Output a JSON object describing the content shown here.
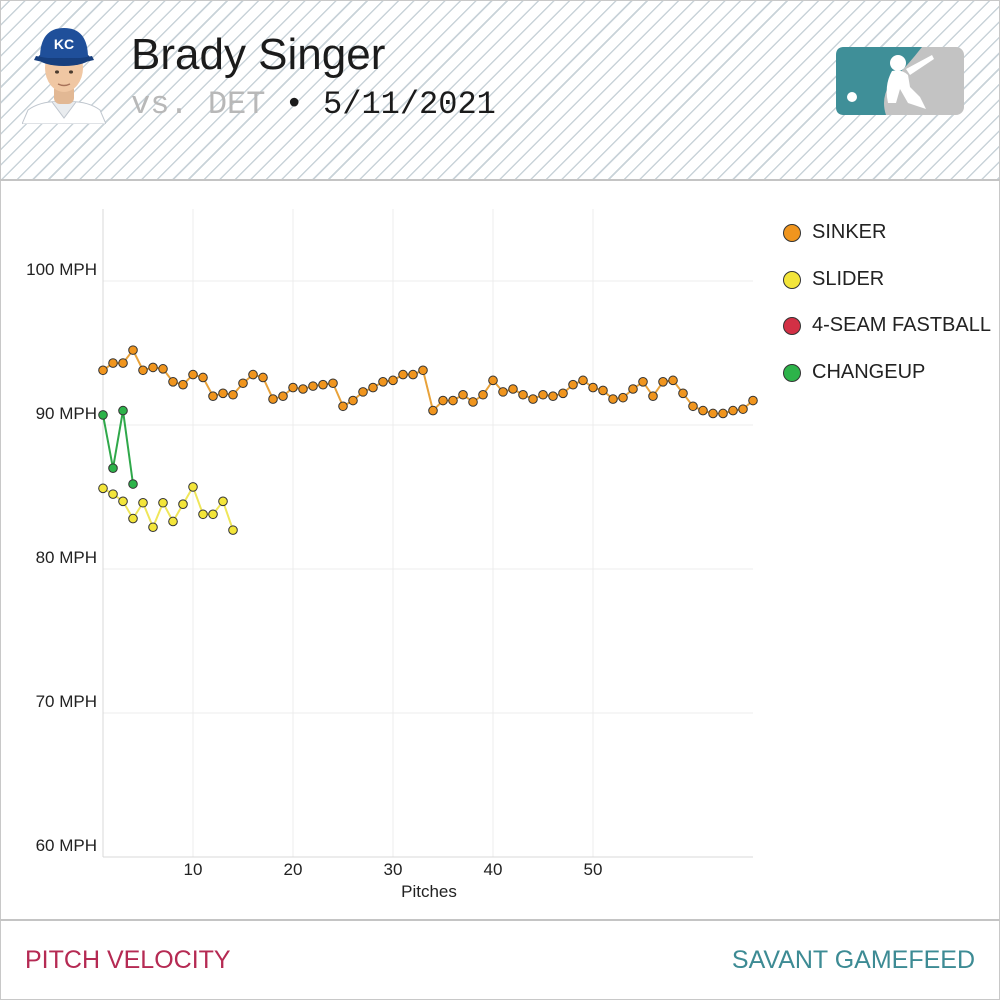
{
  "header": {
    "player_name": "Brady Singer",
    "opponent": "vs. DET",
    "separator": "•",
    "date": "5/11/2021",
    "team_cap_letters": "KC",
    "colors": {
      "cap": "#1f4f9a",
      "logo_left": "#3f8f98",
      "logo_right": "#c3c3c3"
    }
  },
  "footer": {
    "left_label": "PITCH VELOCITY",
    "right_label": "SAVANT GAMEFEED"
  },
  "chart_data": {
    "type": "line",
    "xlabel": "Pitches",
    "ylabel": "",
    "xlim": [
      1,
      66
    ],
    "ylim": [
      60,
      105
    ],
    "x_ticks": [
      10,
      20,
      30,
      40,
      50
    ],
    "y_ticks": [
      {
        "value": 60,
        "label": "60 MPH"
      },
      {
        "value": 70,
        "label": "70 MPH"
      },
      {
        "value": 80,
        "label": "80 MPH"
      },
      {
        "value": 90,
        "label": "90 MPH"
      },
      {
        "value": 100,
        "label": "100 MPH"
      }
    ],
    "grid": true,
    "legend_position": "top-right",
    "series": [
      {
        "name": "SINKER",
        "color": "#f0951e",
        "line_color": "#e8a23a",
        "x": [
          1,
          2,
          3,
          4,
          5,
          6,
          7,
          8,
          9,
          10,
          11,
          12,
          13,
          14,
          15,
          16,
          17,
          18,
          19,
          20,
          21,
          22,
          23,
          24,
          25,
          26,
          27,
          28,
          29,
          30,
          31,
          32,
          33,
          34,
          35,
          36,
          37,
          38,
          39,
          40,
          41,
          42,
          43,
          44,
          45,
          46,
          47,
          48,
          49,
          50,
          51,
          52,
          53,
          54,
          55,
          56,
          57,
          58,
          59,
          60,
          61,
          62,
          63,
          64,
          65,
          66
        ],
        "values": [
          93.8,
          94.3,
          94.3,
          95.2,
          93.8,
          94.0,
          93.9,
          93.0,
          92.8,
          93.5,
          93.3,
          92.0,
          92.2,
          92.1,
          92.9,
          93.5,
          93.3,
          91.8,
          92.0,
          92.6,
          92.5,
          92.7,
          92.8,
          92.9,
          91.3,
          91.7,
          92.3,
          92.6,
          93.0,
          93.1,
          93.5,
          93.5,
          93.8,
          91.0,
          91.7,
          91.7,
          92.1,
          91.6,
          92.1,
          93.1,
          92.3,
          92.5,
          92.1,
          91.8,
          92.1,
          92.0,
          92.2,
          92.8,
          93.1,
          92.6,
          92.4,
          91.8,
          91.9,
          92.5,
          93.0,
          92.0,
          93.0,
          93.1,
          92.2,
          91.3,
          91.0,
          90.8,
          90.8,
          91.0,
          91.1,
          91.7
        ]
      },
      {
        "name": "SLIDER",
        "color": "#f3e53a",
        "line_color": "#efe65a",
        "x": [
          1,
          2,
          3,
          4,
          5,
          6,
          7,
          8,
          9,
          10,
          11,
          12,
          13,
          14
        ],
        "values": [
          85.6,
          85.2,
          84.7,
          83.5,
          84.6,
          82.9,
          84.6,
          83.3,
          84.5,
          85.7,
          83.8,
          83.8,
          84.7,
          82.7
        ]
      },
      {
        "name": "4-SEAM FASTBALL",
        "color": "#d23045",
        "line_color": "#d23045",
        "x": [],
        "values": []
      },
      {
        "name": "CHANGEUP",
        "color": "#2db34a",
        "line_color": "#2fa84a",
        "x": [
          1,
          2,
          3,
          4
        ],
        "values": [
          90.7,
          87.0,
          91.0,
          85.9
        ]
      }
    ]
  }
}
